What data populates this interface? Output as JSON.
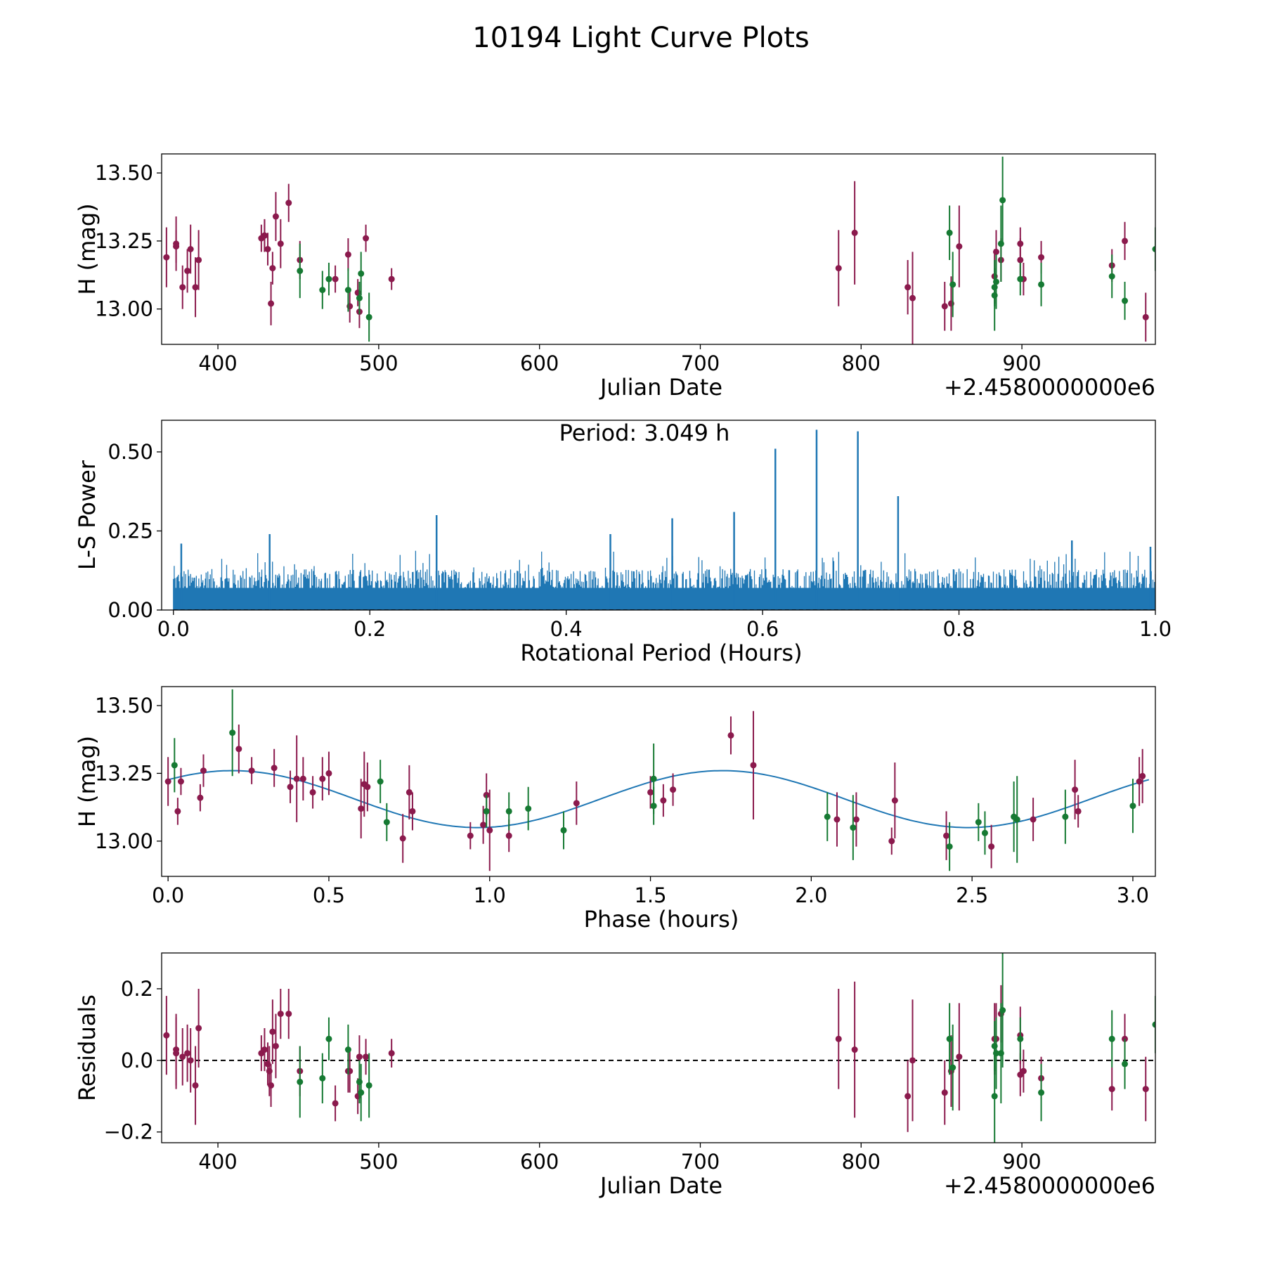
{
  "figure_title": "10194 Light Curve Plots",
  "colors": {
    "magenta": "#8b1a4d",
    "green": "#167a33",
    "blue": "#1f77b4",
    "black": "#000000"
  },
  "chart_data": [
    {
      "id": "lightcurve",
      "type": "scatter",
      "title": "",
      "xlabel": "Julian Date",
      "ylabel": "H (mag)",
      "x_offset_text": "+2.4580000000e6",
      "xlim": [
        365,
        983
      ],
      "ylim": [
        12.87,
        13.57
      ],
      "xticks": [
        400,
        500,
        600,
        700,
        800,
        900
      ],
      "xtick_labels": [
        "400",
        "500",
        "600",
        "700",
        "800",
        "900"
      ],
      "yticks": [
        13.0,
        13.25,
        13.5
      ],
      "ytick_labels": [
        "13.00",
        "13.25",
        "13.50"
      ],
      "series": [
        {
          "name": "magenta",
          "color": "#8b1a4d",
          "x": [
            368,
            374,
            374,
            378,
            381,
            383,
            386,
            388,
            427,
            429,
            429,
            431,
            433,
            434,
            436,
            439,
            444,
            451,
            473,
            481,
            482,
            487,
            488,
            492,
            508,
            786,
            796,
            829,
            832,
            852,
            856,
            861,
            883,
            884,
            887,
            899,
            899,
            901,
            912,
            956,
            964,
            977
          ],
          "y": [
            13.19,
            13.23,
            13.24,
            13.08,
            13.14,
            13.22,
            13.08,
            13.18,
            13.26,
            13.27,
            13.27,
            13.22,
            13.02,
            13.15,
            13.34,
            13.24,
            13.39,
            13.18,
            13.11,
            13.2,
            13.01,
            13.06,
            12.99,
            13.26,
            13.11,
            13.15,
            13.28,
            13.08,
            13.04,
            13.01,
            13.02,
            13.23,
            13.12,
            13.21,
            13.18,
            13.24,
            13.18,
            13.11,
            13.19,
            13.16,
            13.25,
            12.97
          ],
          "yerr": [
            0.11,
            0.06,
            0.1,
            0.08,
            0.08,
            0.09,
            0.11,
            0.11,
            0.05,
            0.06,
            0.06,
            0.06,
            0.08,
            0.06,
            0.09,
            0.09,
            0.07,
            0.07,
            0.05,
            0.06,
            0.06,
            0.05,
            0.06,
            0.05,
            0.04,
            0.14,
            0.19,
            0.1,
            0.17,
            0.09,
            0.1,
            0.15,
            0.1,
            0.08,
            0.08,
            0.06,
            0.08,
            0.06,
            0.06,
            0.06,
            0.07,
            0.09
          ]
        },
        {
          "name": "green",
          "color": "#167a33",
          "x": [
            451,
            465,
            469,
            481,
            488,
            489,
            494,
            855,
            857,
            883,
            883,
            884,
            887,
            888,
            899,
            912,
            956,
            964,
            983
          ],
          "y": [
            13.14,
            13.07,
            13.11,
            13.07,
            13.04,
            13.13,
            12.97,
            13.28,
            13.09,
            13.08,
            13.05,
            13.1,
            13.24,
            13.4,
            13.11,
            13.09,
            13.12,
            13.03,
            13.22
          ],
          "yerr": [
            0.1,
            0.07,
            0.06,
            0.08,
            0.06,
            0.08,
            0.09,
            0.1,
            0.12,
            0.07,
            0.13,
            0.1,
            0.14,
            0.16,
            0.06,
            0.08,
            0.08,
            0.07,
            0.08
          ]
        }
      ]
    },
    {
      "id": "periodogram",
      "type": "line",
      "title": "",
      "annotation": "Period: 3.049 h",
      "xlabel": "Rotational Period (Hours)",
      "ylabel": "L-S Power",
      "xlim": [
        -0.012,
        1.0
      ],
      "ylim": [
        0.0,
        0.6
      ],
      "xticks": [
        0.0,
        0.2,
        0.4,
        0.6,
        0.8,
        1.0
      ],
      "xtick_labels": [
        "0.0",
        "0.2",
        "0.4",
        "0.6",
        "0.8",
        "1.0"
      ],
      "yticks": [
        0.0,
        0.25,
        0.5
      ],
      "ytick_labels": [
        "0.00",
        "0.25",
        "0.50"
      ],
      "color": "#1f77b4",
      "noise_baseline": 0.13,
      "peaks": [
        {
          "x": 0.613,
          "y": 0.51
        },
        {
          "x": 0.655,
          "y": 0.57
        },
        {
          "x": 0.697,
          "y": 0.565
        },
        {
          "x": 0.738,
          "y": 0.36
        },
        {
          "x": 0.268,
          "y": 0.3
        },
        {
          "x": 0.508,
          "y": 0.29
        },
        {
          "x": 0.571,
          "y": 0.31
        },
        {
          "x": 0.098,
          "y": 0.24
        },
        {
          "x": 0.445,
          "y": 0.24
        },
        {
          "x": 0.915,
          "y": 0.22
        },
        {
          "x": 0.008,
          "y": 0.21
        },
        {
          "x": 0.995,
          "y": 0.2
        }
      ]
    },
    {
      "id": "phased",
      "type": "scatter",
      "title": "",
      "xlabel": "Phase (hours)",
      "ylabel": "H (mag)",
      "xlim": [
        -0.02,
        3.07
      ],
      "ylim": [
        12.87,
        13.57
      ],
      "xticks": [
        0.0,
        0.5,
        1.0,
        1.5,
        2.0,
        2.5,
        3.0
      ],
      "xtick_labels": [
        "0.0",
        "0.5",
        "1.0",
        "1.5",
        "2.0",
        "2.5",
        "3.0"
      ],
      "yticks": [
        13.0,
        13.25,
        13.5
      ],
      "ytick_labels": [
        "13.00",
        "13.25",
        "13.50"
      ],
      "model": {
        "type": "sine",
        "mean": 13.155,
        "amplitude": 0.105,
        "period": 3.049,
        "phase_zero": 0.2,
        "color": "#1f77b4"
      },
      "series": [
        {
          "name": "magenta",
          "color": "#8b1a4d",
          "x": [
            0.0,
            0.03,
            0.04,
            0.1,
            0.11,
            0.22,
            0.26,
            0.33,
            0.38,
            0.4,
            0.42,
            0.45,
            0.48,
            0.5,
            0.6,
            0.61,
            0.62,
            0.73,
            0.75,
            0.76,
            0.94,
            0.98,
            0.99,
            1.0,
            1.06,
            1.27,
            1.5,
            1.54,
            1.57,
            1.75,
            1.82,
            2.08,
            2.14,
            2.25,
            2.26,
            2.42,
            2.56,
            2.69,
            2.82,
            2.83,
            3.02,
            3.03
          ],
          "y": [
            13.22,
            13.11,
            13.22,
            13.16,
            13.26,
            13.34,
            13.26,
            13.27,
            13.2,
            13.23,
            13.23,
            13.18,
            13.23,
            13.25,
            13.12,
            13.21,
            13.2,
            13.01,
            13.18,
            13.11,
            13.02,
            13.06,
            13.17,
            13.04,
            13.02,
            13.14,
            13.18,
            13.15,
            13.19,
            13.39,
            13.28,
            13.08,
            13.08,
            13.0,
            13.15,
            13.02,
            12.98,
            13.08,
            13.19,
            13.11,
            13.22,
            13.24
          ],
          "yerr": [
            0.09,
            0.05,
            0.05,
            0.05,
            0.06,
            0.09,
            0.05,
            0.07,
            0.06,
            0.16,
            0.08,
            0.06,
            0.08,
            0.08,
            0.11,
            0.12,
            0.09,
            0.09,
            0.1,
            0.07,
            0.05,
            0.07,
            0.08,
            0.15,
            0.06,
            0.08,
            0.06,
            0.06,
            0.06,
            0.07,
            0.2,
            0.1,
            0.1,
            0.05,
            0.14,
            0.09,
            0.08,
            0.08,
            0.11,
            0.06,
            0.09,
            0.1
          ]
        },
        {
          "name": "green",
          "color": "#167a33",
          "x": [
            0.02,
            0.2,
            0.66,
            0.68,
            0.99,
            1.06,
            1.12,
            1.23,
            1.51,
            1.51,
            2.05,
            2.13,
            2.43,
            2.52,
            2.54,
            2.63,
            2.64,
            2.79,
            3.0
          ],
          "y": [
            13.28,
            13.4,
            13.22,
            13.07,
            13.11,
            13.11,
            13.12,
            13.04,
            13.23,
            13.13,
            13.09,
            13.05,
            12.98,
            13.07,
            13.03,
            13.09,
            13.08,
            13.09,
            13.13
          ],
          "yerr": [
            0.1,
            0.16,
            0.08,
            0.07,
            0.06,
            0.07,
            0.08,
            0.07,
            0.13,
            0.07,
            0.09,
            0.12,
            0.09,
            0.07,
            0.08,
            0.13,
            0.16,
            0.1,
            0.1
          ]
        }
      ]
    },
    {
      "id": "residuals",
      "type": "scatter",
      "title": "",
      "xlabel": "Julian Date",
      "ylabel": "Residuals",
      "x_offset_text": "+2.4580000000e6",
      "xlim": [
        365,
        983
      ],
      "ylim": [
        -0.23,
        0.3
      ],
      "xticks": [
        400,
        500,
        600,
        700,
        800,
        900
      ],
      "xtick_labels": [
        "400",
        "500",
        "600",
        "700",
        "800",
        "900"
      ],
      "yticks": [
        -0.2,
        0.0,
        0.2
      ],
      "ytick_labels": [
        "−0.2",
        "0.0",
        "0.2"
      ],
      "reference_line": {
        "y": 0.0,
        "style": "dashed",
        "color": "#000000"
      },
      "series": [
        {
          "name": "magenta",
          "color": "#8b1a4d",
          "x": [
            368,
            374,
            374,
            378,
            381,
            383,
            386,
            388,
            427,
            429,
            431,
            432,
            433,
            434,
            436,
            439,
            444,
            451,
            473,
            481,
            482,
            487,
            488,
            492,
            508,
            786,
            796,
            829,
            832,
            852,
            856,
            861,
            883,
            884,
            887,
            899,
            899,
            901,
            912,
            956,
            964,
            977
          ],
          "y": [
            0.07,
            0.03,
            0.02,
            0.01,
            0.02,
            0.0,
            -0.07,
            0.09,
            0.02,
            0.03,
            -0.01,
            -0.03,
            -0.07,
            0.08,
            0.04,
            0.13,
            0.13,
            -0.03,
            -0.12,
            -0.03,
            -0.03,
            -0.1,
            0.01,
            0.01,
            0.02,
            0.06,
            0.03,
            -0.1,
            0.0,
            -0.09,
            -0.03,
            0.01,
            0.06,
            0.06,
            0.13,
            -0.04,
            0.07,
            -0.03,
            -0.05,
            -0.08,
            0.06,
            -0.08
          ],
          "yerr": [
            0.11,
            0.1,
            0.1,
            0.08,
            0.08,
            0.09,
            0.11,
            0.11,
            0.05,
            0.06,
            0.06,
            0.07,
            0.06,
            0.09,
            0.09,
            0.07,
            0.07,
            0.07,
            0.05,
            0.06,
            0.06,
            0.05,
            0.06,
            0.05,
            0.04,
            0.14,
            0.19,
            0.1,
            0.17,
            0.09,
            0.1,
            0.15,
            0.1,
            0.1,
            0.08,
            0.06,
            0.08,
            0.06,
            0.06,
            0.06,
            0.07,
            0.09
          ]
        },
        {
          "name": "green",
          "color": "#167a33",
          "x": [
            451,
            465,
            469,
            481,
            488,
            489,
            494,
            855,
            857,
            883,
            883,
            884,
            887,
            888,
            899,
            912,
            956,
            964,
            983
          ],
          "y": [
            -0.06,
            -0.05,
            0.06,
            0.03,
            -0.06,
            -0.09,
            -0.07,
            0.06,
            -0.02,
            0.04,
            -0.1,
            0.02,
            0.02,
            0.14,
            0.06,
            -0.09,
            0.06,
            -0.01,
            0.1
          ],
          "yerr": [
            0.1,
            0.07,
            0.06,
            0.07,
            0.06,
            0.08,
            0.09,
            0.1,
            0.12,
            0.07,
            0.13,
            0.1,
            0.14,
            0.16,
            0.06,
            0.08,
            0.08,
            0.07,
            0.08
          ]
        }
      ]
    }
  ]
}
